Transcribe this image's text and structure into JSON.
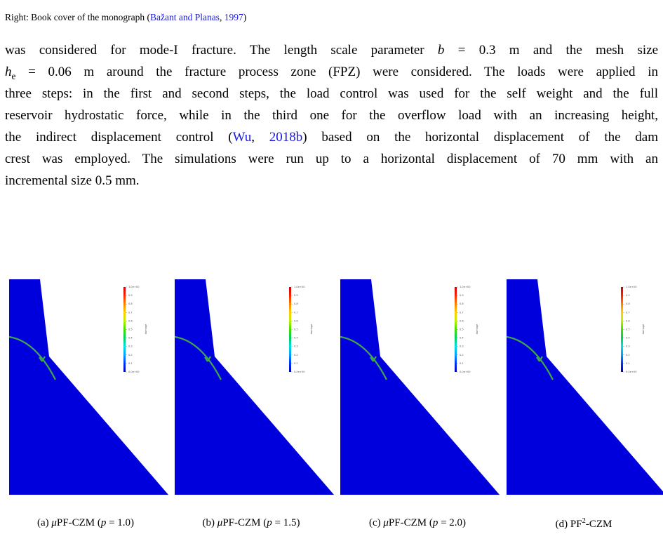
{
  "caption_prev": [
    {
      "text": "Right: Book cover of the monograph (",
      "kind": "plain"
    },
    {
      "text": "Bažant and Planas",
      "kind": "link"
    },
    {
      "text": ", ",
      "kind": "plain"
    },
    {
      "text": "1997",
      "kind": "link"
    },
    {
      "text": ")",
      "kind": "plain"
    }
  ],
  "paragraph": [
    [
      {
        "text": "was considered for mode-I fracture.  The length scale parameter ",
        "kind": "plain"
      },
      {
        "text": "b",
        "kind": "math"
      },
      {
        "text": " = 0.3 m and the mesh size",
        "kind": "plain"
      }
    ],
    [
      {
        "text": "h",
        "kind": "math"
      },
      {
        "text": "e",
        "kind": "sub"
      },
      {
        "text": " = 0.06 m around the fracture process zone (FPZ) were considered. The loads were applied in",
        "kind": "plain"
      }
    ],
    [
      {
        "text": "three steps: in the first and second steps, the load control was used for the self weight and the full",
        "kind": "plain"
      }
    ],
    [
      {
        "text": "reservoir hydrostatic force, while in the third one for the overflow load with an increasing height,",
        "kind": "plain"
      }
    ],
    [
      {
        "text": "the indirect displacement control (",
        "kind": "plain"
      },
      {
        "text": "Wu",
        "kind": "link"
      },
      {
        "text": ", ",
        "kind": "plain"
      },
      {
        "text": "2018b",
        "kind": "link"
      },
      {
        "text": ") based on the horizontal displacement of the dam",
        "kind": "plain"
      }
    ],
    [
      {
        "text": "crest was employed.  The simulations were run up to a horizontal displacement of 70 mm with an",
        "kind": "plain"
      }
    ],
    [
      {
        "text": "incremental size 0.5 mm.",
        "kind": "plain"
      }
    ]
  ],
  "colorbar": {
    "title": "damage",
    "labels": [
      "1.0e+00",
      "0.9",
      "0.8",
      "0.7",
      "0.6",
      "0.5",
      "0.4",
      "0.3",
      "0.2",
      "0.1",
      "0.0e+00"
    ]
  },
  "panels": [
    [
      {
        "text": "(a) ",
        "kind": "plain"
      },
      {
        "text": "μ",
        "kind": "math"
      },
      {
        "text": "PF-CZM (",
        "kind": "plain"
      },
      {
        "text": "p",
        "kind": "math"
      },
      {
        "text": " = 1.0)",
        "kind": "plain"
      }
    ],
    [
      {
        "text": "(b) ",
        "kind": "plain"
      },
      {
        "text": "μ",
        "kind": "math"
      },
      {
        "text": "PF-CZM (",
        "kind": "plain"
      },
      {
        "text": "p",
        "kind": "math"
      },
      {
        "text": " = 1.5)",
        "kind": "plain"
      }
    ],
    [
      {
        "text": "(c) ",
        "kind": "plain"
      },
      {
        "text": "μ",
        "kind": "math"
      },
      {
        "text": "PF-CZM (",
        "kind": "plain"
      },
      {
        "text": "p",
        "kind": "math"
      },
      {
        "text": " = 2.0)",
        "kind": "plain"
      }
    ],
    [
      {
        "text": "(d) PF",
        "kind": "plain"
      },
      {
        "text": "2",
        "kind": "sup"
      },
      {
        "text": "-CZM",
        "kind": "plain"
      }
    ]
  ]
}
